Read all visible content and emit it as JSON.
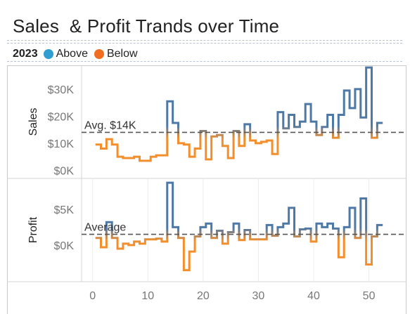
{
  "title": "Sales  & Profit Trands over Time",
  "legend": {
    "title": "2023",
    "items": [
      {
        "label": "Above",
        "color": "#2e9fd0"
      },
      {
        "label": "Below",
        "color": "#f36d21"
      }
    ]
  },
  "colors": {
    "above": "#4e79a7",
    "below": "#f28e2b",
    "reference_line": "#555555"
  },
  "chart_data": {
    "type": "line",
    "shape": "step",
    "x_ticks": [
      0,
      10,
      20,
      30,
      40,
      50
    ],
    "xlim": [
      -2,
      54
    ],
    "panels": [
      {
        "name": "sales",
        "ylabel": "Sales",
        "ylim": [
          -2000,
          37000
        ],
        "ticks": [
          {
            "value": 0,
            "label": "$0K"
          },
          {
            "value": 10000,
            "label": "$10K"
          },
          {
            "value": 20000,
            "label": "$20K"
          },
          {
            "value": 30000,
            "label": "$30K"
          }
        ],
        "reference": {
          "value": 14000,
          "label": "Avg. $14K"
        },
        "x": [
          1,
          2,
          3,
          4,
          5,
          6,
          7,
          8,
          9,
          10,
          11,
          12,
          13,
          14,
          15,
          16,
          17,
          18,
          19,
          20,
          21,
          22,
          23,
          24,
          25,
          26,
          27,
          28,
          29,
          30,
          31,
          32,
          33,
          34,
          35,
          36,
          37,
          38,
          39,
          40,
          41,
          42,
          43,
          44,
          45,
          46,
          47,
          48,
          49,
          50,
          51,
          52
        ],
        "values": [
          9500,
          8000,
          11500,
          9500,
          5000,
          4500,
          4500,
          5000,
          3500,
          3500,
          5000,
          5500,
          5500,
          25500,
          17500,
          10000,
          9500,
          5000,
          8000,
          14500,
          4000,
          12500,
          13000,
          9000,
          4500,
          14500,
          9000,
          17000,
          11000,
          10000,
          10500,
          11000,
          6000,
          21500,
          15500,
          20500,
          16000,
          18000,
          24500,
          18000,
          13000,
          16000,
          20500,
          12000,
          20500,
          29500,
          23000,
          30000,
          19500,
          38000,
          12000,
          17500
        ]
      },
      {
        "name": "profit",
        "ylabel": "Profit",
        "ylim": [
          -5000,
          9000
        ],
        "ticks": [
          {
            "value": 0,
            "label": "$0K"
          },
          {
            "value": 5000,
            "label": "$5K"
          }
        ],
        "reference": {
          "value": 1500,
          "label": "Average"
        },
        "x": [
          1,
          2,
          3,
          4,
          5,
          6,
          7,
          8,
          9,
          10,
          11,
          12,
          13,
          14,
          15,
          16,
          17,
          18,
          19,
          20,
          21,
          22,
          23,
          24,
          25,
          26,
          27,
          28,
          29,
          30,
          31,
          32,
          33,
          34,
          35,
          36,
          37,
          38,
          39,
          40,
          41,
          42,
          43,
          44,
          45,
          46,
          47,
          48,
          49,
          50,
          51,
          52
        ],
        "values": [
          1000,
          -300,
          3200,
          1000,
          -500,
          200,
          0,
          500,
          200,
          800,
          800,
          900,
          500,
          8700,
          2500,
          1000,
          -3500,
          -900,
          1200,
          2500,
          3000,
          1000,
          2000,
          200,
          1800,
          3000,
          700,
          2100,
          800,
          800,
          800,
          2800,
          1300,
          2500,
          3000,
          5200,
          1200,
          2200,
          2300,
          500,
          3000,
          2500,
          3000,
          2300,
          -1700,
          2500,
          5200,
          1000,
          6500,
          -2700,
          1200,
          2800
        ]
      }
    ]
  }
}
